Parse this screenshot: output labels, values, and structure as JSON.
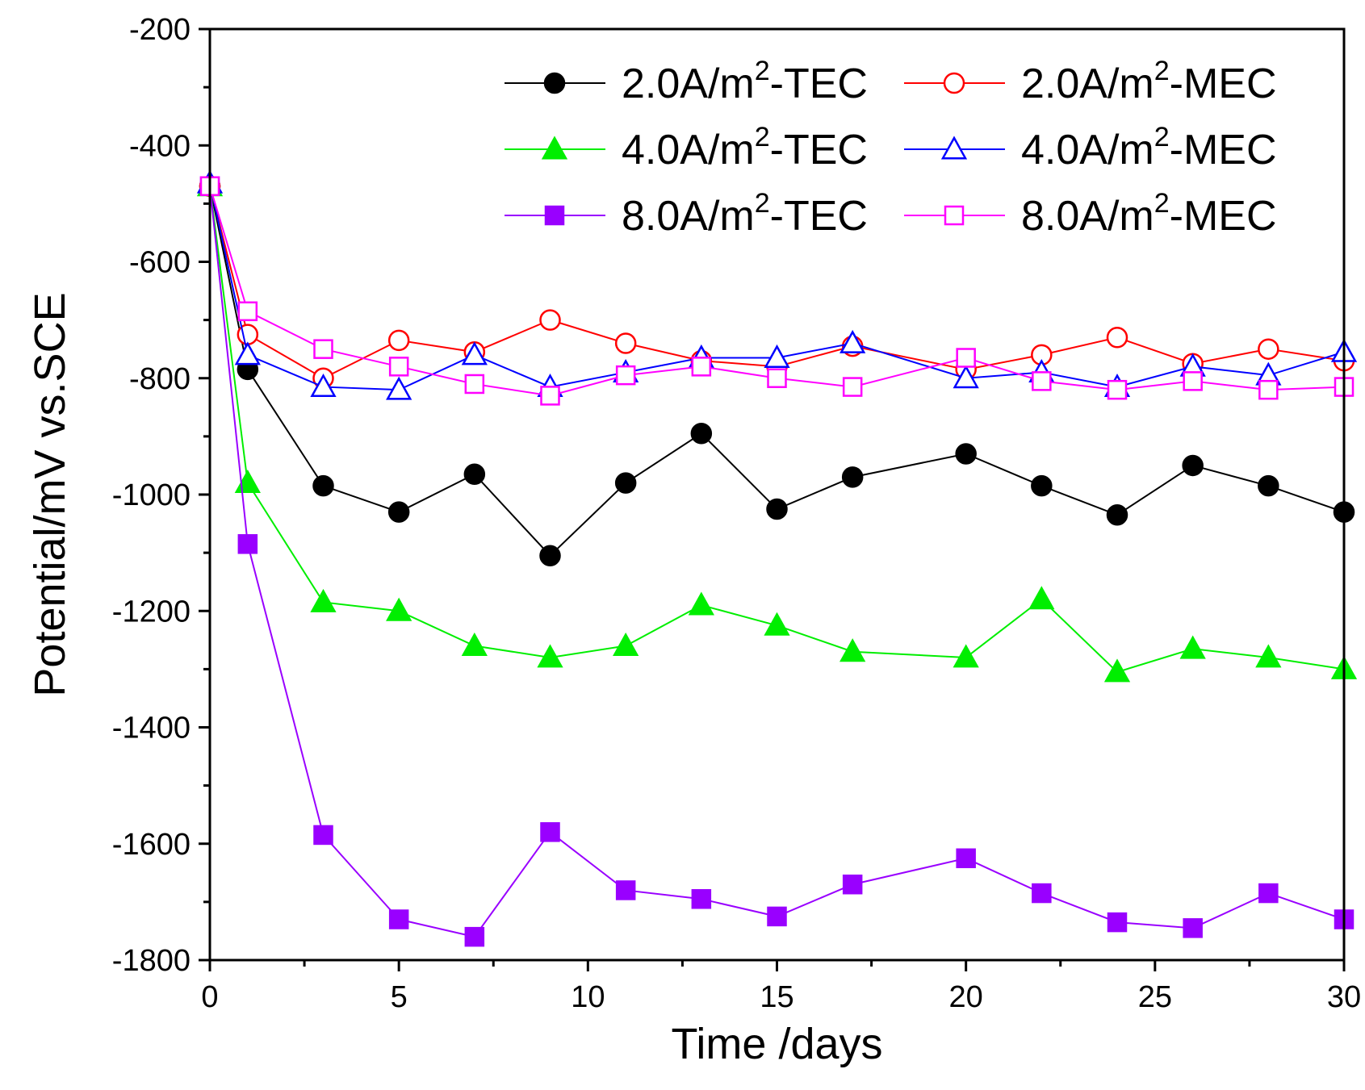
{
  "chart_data": {
    "type": "line",
    "title": "",
    "xlabel": "Time /days",
    "ylabel": "Potential/mV vs.SCE",
    "xlim": [
      0,
      30
    ],
    "ylim": [
      -1800,
      -200
    ],
    "xticks": [
      0,
      5,
      10,
      15,
      20,
      25,
      30
    ],
    "yticks": [
      -200,
      -400,
      -600,
      -800,
      -1000,
      -1200,
      -1400,
      -1600,
      -1800
    ],
    "legend_position": "top-right",
    "x": [
      0,
      1,
      3,
      5,
      7,
      9,
      11,
      13,
      15,
      17,
      20,
      22,
      24,
      26,
      28,
      30
    ],
    "series": [
      {
        "name": "2.0A/m2-TEC",
        "label_main": "2.0A/m",
        "label_sup": "2",
        "label_tail": "-TEC",
        "color": "#000000",
        "marker": "circle",
        "filled": true,
        "values": [
          -470,
          -785,
          -985,
          -1030,
          -965,
          -1105,
          -980,
          -895,
          -1025,
          -970,
          -930,
          -985,
          -1035,
          -950,
          -985,
          -1030
        ]
      },
      {
        "name": "2.0A/m2-MEC",
        "label_main": "2.0A/m",
        "label_sup": "2",
        "label_tail": "-MEC",
        "color": "#ff0000",
        "marker": "circle",
        "filled": false,
        "values": [
          -470,
          -725,
          -800,
          -735,
          -755,
          -700,
          -740,
          -770,
          -780,
          -745,
          -785,
          -760,
          -730,
          -775,
          -750,
          -770
        ]
      },
      {
        "name": "4.0A/m2-TEC",
        "label_main": "4.0A/m",
        "label_sup": "2",
        "label_tail": "-TEC",
        "color": "#00ee00",
        "marker": "triangle",
        "filled": true,
        "values": [
          -470,
          -980,
          -1185,
          -1200,
          -1260,
          -1280,
          -1260,
          -1190,
          -1225,
          -1270,
          -1280,
          -1180,
          -1305,
          -1265,
          -1280,
          -1300
        ]
      },
      {
        "name": "4.0A/m2-MEC",
        "label_main": "4.0A/m",
        "label_sup": "2",
        "label_tail": "-MEC",
        "color": "#0000ff",
        "marker": "triangle",
        "filled": false,
        "values": [
          -465,
          -760,
          -815,
          -820,
          -760,
          -815,
          -790,
          -765,
          -765,
          -740,
          -800,
          -790,
          -815,
          -780,
          -795,
          -755
        ]
      },
      {
        "name": "8.0A/m2-TEC",
        "label_main": "8.0A/m",
        "label_sup": "2",
        "label_tail": "-TEC",
        "color": "#9900ff",
        "marker": "square",
        "filled": true,
        "values": [
          -470,
          -1085,
          -1585,
          -1730,
          -1760,
          -1580,
          -1680,
          -1695,
          -1725,
          -1670,
          -1625,
          -1685,
          -1735,
          -1745,
          -1685,
          -1730
        ]
      },
      {
        "name": "8.0A/m2-MEC",
        "label_main": "8.0A/m",
        "label_sup": "2",
        "label_tail": "-MEC",
        "color": "#ff00ff",
        "marker": "square",
        "filled": false,
        "values": [
          -470,
          -685,
          -750,
          -780,
          -810,
          -830,
          -795,
          -780,
          -800,
          -815,
          -765,
          -805,
          -820,
          -805,
          -820,
          -815
        ]
      }
    ]
  }
}
